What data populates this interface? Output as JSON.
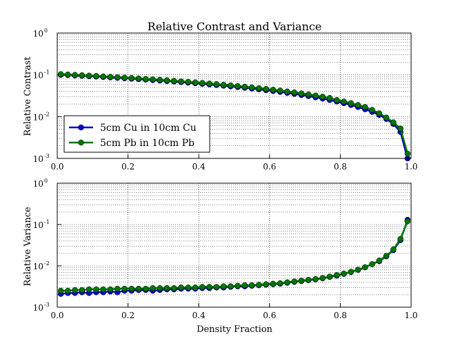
{
  "chart_data": [
    {
      "type": "line",
      "title": "Relative Contrast and Variance",
      "xlabel": "",
      "ylabel": "Relative Contrast",
      "xlim": [
        0,
        1
      ],
      "ylim": [
        0.001,
        1
      ],
      "yscale": "log",
      "grid": true,
      "legend_position": "lower-left",
      "x_ticks": [
        "0.0",
        "0.2",
        "0.4",
        "0.6",
        "0.8",
        "1.0"
      ],
      "y_ticks": [
        {
          "base": "10",
          "exp": "-3"
        },
        {
          "base": "10",
          "exp": "-2"
        },
        {
          "base": "10",
          "exp": "-1"
        },
        {
          "base": "10",
          "exp": "0"
        }
      ],
      "x": [
        0.01,
        0.03,
        0.05,
        0.07,
        0.09,
        0.11,
        0.13,
        0.15,
        0.17,
        0.19,
        0.21,
        0.23,
        0.25,
        0.27,
        0.29,
        0.31,
        0.33,
        0.35,
        0.37,
        0.39,
        0.41,
        0.43,
        0.45,
        0.47,
        0.49,
        0.51,
        0.53,
        0.55,
        0.57,
        0.59,
        0.61,
        0.63,
        0.65,
        0.67,
        0.69,
        0.71,
        0.73,
        0.75,
        0.77,
        0.79,
        0.81,
        0.83,
        0.85,
        0.87,
        0.89,
        0.91,
        0.93,
        0.95,
        0.97,
        0.99
      ],
      "series": [
        {
          "name": "5cm Cu in 10cm Cu",
          "color": "#0000cc",
          "values": [
            0.1,
            0.099,
            0.097,
            0.095,
            0.093,
            0.091,
            0.089,
            0.087,
            0.085,
            0.083,
            0.081,
            0.079,
            0.077,
            0.075,
            0.073,
            0.071,
            0.069,
            0.067,
            0.065,
            0.063,
            0.061,
            0.059,
            0.057,
            0.055,
            0.053,
            0.051,
            0.049,
            0.047,
            0.045,
            0.043,
            0.041,
            0.039,
            0.037,
            0.035,
            0.033,
            0.031,
            0.029,
            0.027,
            0.025,
            0.023,
            0.021,
            0.019,
            0.017,
            0.015,
            0.013,
            0.011,
            0.0088,
            0.0067,
            0.0043,
            0.001
          ]
        },
        {
          "name": "5cm Pb in 10cm Pb",
          "color": "#007700",
          "values": [
            0.104,
            0.102,
            0.1,
            0.098,
            0.096,
            0.094,
            0.092,
            0.09,
            0.088,
            0.086,
            0.084,
            0.082,
            0.08,
            0.078,
            0.076,
            0.074,
            0.072,
            0.07,
            0.068,
            0.066,
            0.064,
            0.062,
            0.06,
            0.058,
            0.056,
            0.054,
            0.052,
            0.05,
            0.048,
            0.046,
            0.044,
            0.042,
            0.04,
            0.038,
            0.036,
            0.034,
            0.032,
            0.03,
            0.028,
            0.025,
            0.023,
            0.021,
            0.019,
            0.017,
            0.0145,
            0.012,
            0.0095,
            0.0073,
            0.0052,
            0.0013
          ]
        }
      ]
    },
    {
      "type": "line",
      "title": "",
      "xlabel": "Density Fraction",
      "ylabel": "Relative Variance",
      "xlim": [
        0,
        1
      ],
      "ylim": [
        0.001,
        1
      ],
      "yscale": "log",
      "grid": true,
      "x_ticks": [
        "0.0",
        "0.2",
        "0.4",
        "0.6",
        "0.8",
        "1.0"
      ],
      "y_ticks": [
        {
          "base": "10",
          "exp": "-3"
        },
        {
          "base": "10",
          "exp": "-2"
        },
        {
          "base": "10",
          "exp": "-1"
        },
        {
          "base": "10",
          "exp": "0"
        }
      ],
      "x": [
        0.01,
        0.03,
        0.05,
        0.07,
        0.09,
        0.11,
        0.13,
        0.15,
        0.17,
        0.19,
        0.21,
        0.23,
        0.25,
        0.27,
        0.29,
        0.31,
        0.33,
        0.35,
        0.37,
        0.39,
        0.41,
        0.43,
        0.45,
        0.47,
        0.49,
        0.51,
        0.53,
        0.55,
        0.57,
        0.59,
        0.61,
        0.63,
        0.65,
        0.67,
        0.69,
        0.71,
        0.73,
        0.75,
        0.77,
        0.79,
        0.81,
        0.83,
        0.85,
        0.87,
        0.89,
        0.91,
        0.93,
        0.95,
        0.97,
        0.99
      ],
      "series": [
        {
          "name": "5cm Cu in 10cm Cu",
          "color": "#0000cc",
          "values": [
            0.0021,
            0.0022,
            0.0022,
            0.0023,
            0.0022,
            0.0023,
            0.0023,
            0.0024,
            0.0023,
            0.0025,
            0.0025,
            0.0026,
            0.0026,
            0.0025,
            0.0026,
            0.0027,
            0.0027,
            0.0028,
            0.0028,
            0.0028,
            0.0029,
            0.0029,
            0.003,
            0.003,
            0.0031,
            0.0032,
            0.0032,
            0.0033,
            0.0034,
            0.0035,
            0.0036,
            0.0037,
            0.0039,
            0.0041,
            0.0043,
            0.0045,
            0.0047,
            0.005,
            0.0054,
            0.0058,
            0.0064,
            0.0071,
            0.008,
            0.0092,
            0.011,
            0.013,
            0.017,
            0.024,
            0.042,
            0.13
          ]
        },
        {
          "name": "5cm Pb in 10cm Pb",
          "color": "#007700",
          "values": [
            0.0025,
            0.0025,
            0.0026,
            0.0026,
            0.0027,
            0.0027,
            0.0027,
            0.0027,
            0.0028,
            0.0028,
            0.0028,
            0.0028,
            0.0028,
            0.0029,
            0.0029,
            0.0029,
            0.0029,
            0.003,
            0.003,
            0.003,
            0.0031,
            0.0031,
            0.0031,
            0.0032,
            0.0032,
            0.0033,
            0.0034,
            0.0034,
            0.0035,
            0.0036,
            0.0037,
            0.0038,
            0.004,
            0.0042,
            0.0044,
            0.0046,
            0.0048,
            0.0051,
            0.0055,
            0.006,
            0.0065,
            0.0072,
            0.0081,
            0.0093,
            0.011,
            0.0135,
            0.0175,
            0.025,
            0.045,
            0.12
          ]
        }
      ]
    }
  ]
}
